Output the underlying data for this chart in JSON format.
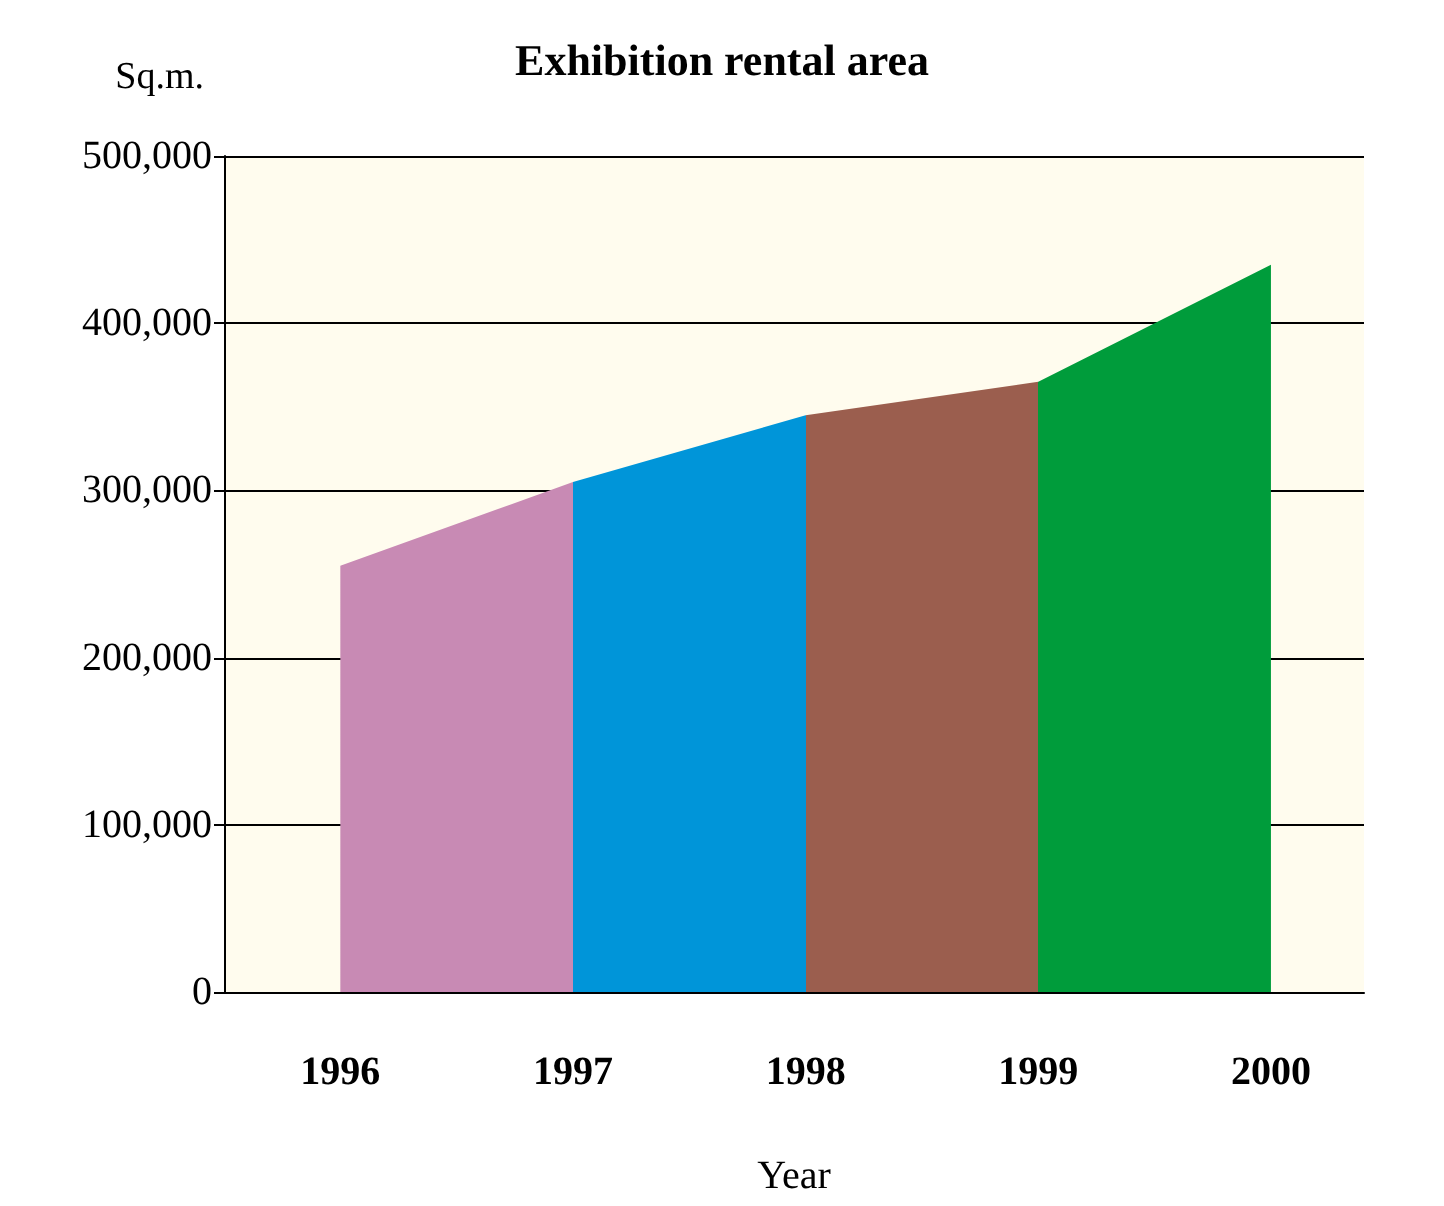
{
  "chart_data": {
    "type": "area",
    "title": "Exhibition rental area",
    "xlabel": "Year",
    "ylabel": "Sq.m.",
    "categories": [
      "1996",
      "1997",
      "1998",
      "1999",
      "2000"
    ],
    "values": [
      255000,
      305000,
      345000,
      365000,
      435000
    ],
    "colors": [
      "#c88ab4",
      "#0095d9",
      "#9b5e4e",
      "#009c3b",
      "#009c3b"
    ],
    "ylim": [
      0,
      500000
    ],
    "yticks": [
      {
        "value": 0,
        "label": "0"
      },
      {
        "value": 100000,
        "label": "100,000"
      },
      {
        "value": 200000,
        "label": "200,000"
      },
      {
        "value": 300000,
        "label": "300,000"
      },
      {
        "value": 400000,
        "label": "400,000"
      },
      {
        "value": 500000,
        "label": "500,000"
      }
    ],
    "grid": "y"
  }
}
